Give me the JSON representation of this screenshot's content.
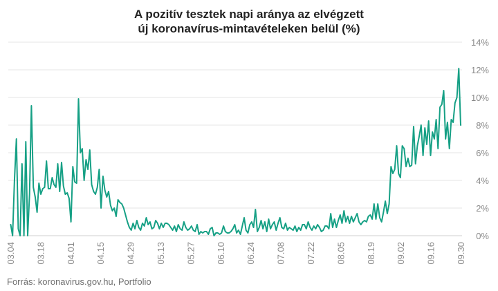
{
  "chart_data": {
    "type": "line",
    "title_line1": "A pozitív tesztek napi aránya az elvégzett",
    "title_line2": "új koronavírus-mintavételeken belül (%)",
    "xlabel": "",
    "ylabel": "",
    "ylim": [
      0,
      14
    ],
    "y_ticks": [
      0,
      2,
      4,
      6,
      8,
      10,
      12,
      14
    ],
    "y_tick_labels": [
      "0%",
      "2%",
      "4%",
      "6%",
      "8%",
      "10%",
      "12%",
      "14%"
    ],
    "x_ticks": [
      "03.04",
      "03.18",
      "04.01",
      "04.15",
      "04.29",
      "05.13",
      "05.27",
      "06.10",
      "06.24",
      "07.08",
      "07.22",
      "08.05",
      "08.19",
      "09.02",
      "09.16",
      "09.30"
    ],
    "x_start": "03.04",
    "x_end": "09.30",
    "grid": true,
    "color": "#16a085",
    "series": [
      {
        "name": "",
        "values": [
          0.8,
          0,
          4.0,
          7.0,
          0.5,
          0,
          5.2,
          0,
          6.8,
          0,
          3.0,
          9.4,
          3.5,
          2.8,
          1.7,
          3.8,
          3.0,
          3.4,
          3.5,
          5.4,
          3.4,
          3.4,
          4.2,
          3.7,
          3.5,
          5.2,
          3.2,
          5.3,
          3.6,
          3.0,
          3.1,
          2.7,
          1.0,
          5.0,
          3.9,
          3.8,
          9.9,
          6.0,
          6.3,
          4.0,
          5.5,
          4.8,
          6.2,
          3.7,
          3.2,
          3.0,
          3.5,
          4.8,
          2.0,
          4.3,
          3.3,
          2.8,
          3.2,
          2.2,
          1.8,
          2.0,
          1.4,
          2.6,
          2.4,
          2.3,
          2.0,
          1.5,
          1.0,
          0.6,
          0.4,
          0.9,
          0.5,
          1.1,
          0.6,
          0.4,
          0.9,
          0.7,
          1.3,
          0.8,
          1.0,
          0.5,
          0.6,
          1.1,
          0.9,
          0.5,
          0.9,
          0.6,
          0.9,
          0.9,
          0.8,
          0.6,
          0.4,
          0.7,
          0.3,
          0.8,
          0.5,
          0.4,
          1.0,
          0.6,
          0.4,
          0.5,
          0.7,
          0.4,
          0.3,
          0.8,
          0.1,
          0.3,
          0.2,
          0.3,
          0.3,
          0.1,
          0.5,
          0.6,
          0.0,
          0.2,
          0.2,
          0.1,
          0.2,
          0.7,
          0.3,
          0.2,
          0.2,
          0.3,
          0.5,
          0.8,
          0.2,
          0.4,
          0.1,
          0.7,
          1.3,
          0.4,
          0.2,
          0.8,
          1.0,
          0.6,
          1.9,
          0.3,
          0.6,
          1.1,
          0.5,
          1.0,
          0.3,
          1.2,
          0.5,
          0.8,
          1.0,
          0.4,
          0.9,
          1.3,
          0.6,
          0.5,
          0.9,
          0.4,
          0.6,
          0.5,
          0.4,
          0.7,
          0.3,
          0.6,
          0.4,
          0.8,
          0.8,
          0.5,
          1.0,
          0.6,
          0.4,
          0.7,
          0.5,
          0.8,
          0.6,
          0.3,
          0.4,
          0.7,
          0.7,
          0.5,
          1.6,
          0.6,
          1.2,
          0.6,
          1.1,
          1.5,
          0.9,
          1.8,
          1.0,
          1.4,
          0.9,
          1.4,
          1.0,
          1.3,
          1.6,
          1.0,
          0.8,
          1.0,
          1.1,
          1.0,
          1.4,
          1.5,
          1.2,
          2.3,
          1.2,
          2.3,
          1.3,
          1.0,
          1.7,
          2.5,
          1.6,
          2.3,
          5.0,
          4.5,
          4.8,
          6.5,
          4.5,
          4.2,
          6.5,
          6.3,
          5.0,
          5.6,
          5.0,
          5.1,
          7.9,
          5.2,
          6.5,
          7.2,
          8.0,
          5.8,
          7.8,
          6.6,
          8.3,
          5.8,
          7.5,
          7.0,
          8.4,
          6.3,
          9.3,
          9.5,
          10.5,
          7.0,
          8.2,
          6.3,
          8.4,
          8.2,
          9.6,
          10.0,
          12.1,
          8.0
        ]
      }
    ]
  },
  "source": "Forrás: koronavirus.gov.hu, Portfolio"
}
